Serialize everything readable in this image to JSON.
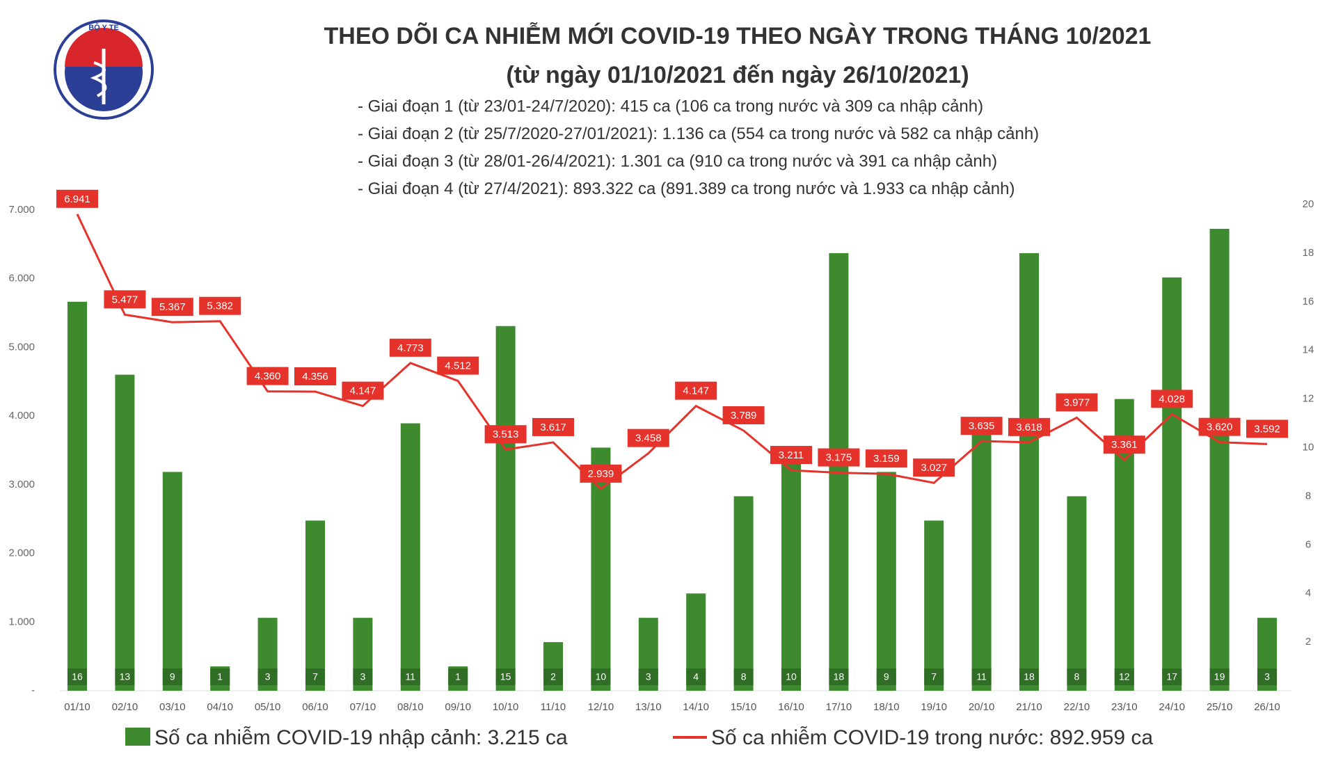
{
  "logo_text": "BỘ Y TẾ",
  "chart_data": {
    "type": "bar-line",
    "title": "THEO DÕI CA NHIỄM MỚI COVID-19 THEO NGÀY TRONG THÁNG 10/2021",
    "subtitle": "(từ ngày 01/10/2021 đến ngày 26/10/2021)",
    "annotations": [
      "- Giai đoạn 1 (từ 23/01-24/7/2020): 415 ca (106 ca trong nước và 309 ca nhập cảnh)",
      "- Giai đoạn 2 (từ 25/7/2020-27/01/2021): 1.136 ca (554 ca trong nước và 582 ca nhập cảnh)",
      "- Giai đoạn 3 (từ 28/01-26/4/2021): 1.301 ca (910 ca trong nước và 391 ca nhập cảnh)",
      "- Giai đoạn 4 (từ 27/4/2021): 893.322 ca (891.389 ca trong nước và 1.933 ca nhập cảnh)"
    ],
    "categories": [
      "01/10",
      "02/10",
      "03/10",
      "04/10",
      "05/10",
      "06/10",
      "07/10",
      "08/10",
      "09/10",
      "10/10",
      "11/10",
      "12/10",
      "13/10",
      "14/10",
      "15/10",
      "16/10",
      "17/10",
      "18/10",
      "19/10",
      "20/10",
      "21/10",
      "22/10",
      "23/10",
      "24/10",
      "25/10",
      "26/10"
    ],
    "series": [
      {
        "name": "Số ca nhiễm COVID-19 nhập cảnh: 3.215 ca",
        "type": "bar",
        "axis": "y2",
        "color": "#3e8b2f",
        "values": [
          16,
          13,
          9,
          1,
          3,
          7,
          3,
          11,
          1,
          15,
          2,
          10,
          3,
          4,
          8,
          10,
          18,
          9,
          7,
          11,
          18,
          8,
          12,
          17,
          19,
          3
        ]
      },
      {
        "name": "Số ca nhiễm COVID-19 trong nước: 892.959 ca",
        "type": "line",
        "axis": "y",
        "color": "#e5322a",
        "values": [
          6941,
          5477,
          5367,
          5382,
          4360,
          4356,
          4147,
          4773,
          4512,
          3513,
          3617,
          2939,
          3458,
          4147,
          3789,
          3211,
          3175,
          3159,
          3027,
          3635,
          3618,
          3977,
          3361,
          4028,
          3620,
          3592
        ],
        "value_labels": [
          "6.941",
          "5.477",
          "5.367",
          "5.382",
          "4.360",
          "4.356",
          "4.147",
          "4.773",
          "4.512",
          "3.513",
          "3.617",
          "2.939",
          "3.458",
          "4.147",
          "3.789",
          "3.211",
          "3.175",
          "3.159",
          "3.027",
          "3.635",
          "3.618",
          "3.977",
          "3.361",
          "4.028",
          "3.620",
          "3.592"
        ]
      }
    ],
    "ylim": [
      0,
      7000
    ],
    "yticks": [
      {
        "value": 0,
        "label": "-"
      },
      {
        "value": 1000,
        "label": "1.000"
      },
      {
        "value": 2000,
        "label": "2.000"
      },
      {
        "value": 3000,
        "label": "3.000"
      },
      {
        "value": 4000,
        "label": "4.000"
      },
      {
        "value": 5000,
        "label": "5.000"
      },
      {
        "value": 6000,
        "label": "6.000"
      },
      {
        "value": 7000,
        "label": "7.000"
      }
    ],
    "y2lim": [
      0,
      20
    ],
    "y2ticks": [
      2,
      4,
      6,
      8,
      10,
      12,
      14,
      16,
      18,
      20
    ]
  }
}
